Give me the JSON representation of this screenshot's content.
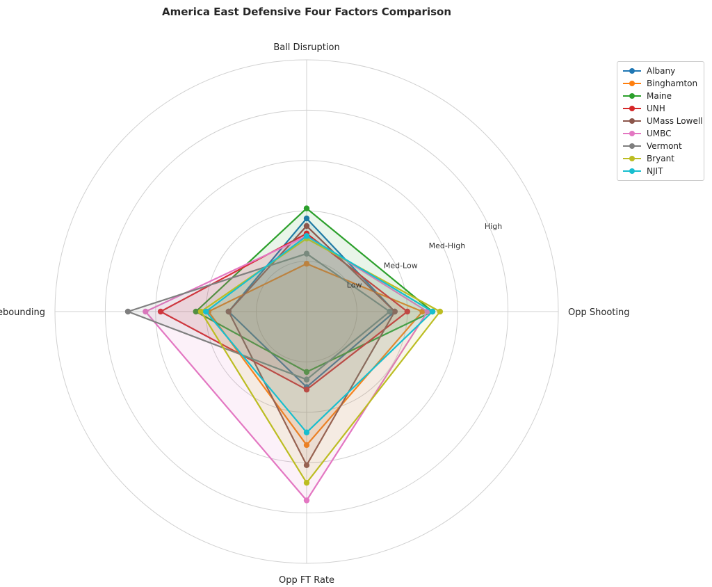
{
  "chart_data": {
    "type": "radar",
    "title": "America East Defensive Four Factors Comparison",
    "axes": [
      "Ball Disruption",
      "Opp Shooting",
      "Opp FT Rate",
      "Def Rebounding"
    ],
    "radial_ticks": [
      "Low",
      "Med-Low",
      "Med-High",
      "High"
    ],
    "radial_tick_values": [
      1,
      2,
      3,
      4
    ],
    "rlim": [
      0,
      5
    ],
    "grid": true,
    "legend_position": "top-right",
    "series": [
      {
        "name": "Albany",
        "color": "#1f77b4",
        "values": [
          1.85,
          1.75,
          1.5,
          1.55
        ]
      },
      {
        "name": "Binghamton",
        "color": "#ff7f0e",
        "values": [
          0.95,
          2.3,
          2.65,
          1.95
        ]
      },
      {
        "name": "Maine",
        "color": "#2ca02c",
        "values": [
          2.05,
          2.5,
          1.2,
          2.2
        ]
      },
      {
        "name": "UNH",
        "color": "#d62728",
        "values": [
          1.55,
          2.0,
          1.55,
          2.9
        ]
      },
      {
        "name": "UMass Lowell",
        "color": "#8c564b",
        "values": [
          1.7,
          1.75,
          3.05,
          1.55
        ]
      },
      {
        "name": "UMBC",
        "color": "#e377c2",
        "values": [
          1.5,
          2.4,
          3.75,
          3.2
        ]
      },
      {
        "name": "Vermont",
        "color": "#7f7f7f",
        "values": [
          1.15,
          1.65,
          1.35,
          3.55
        ]
      },
      {
        "name": "Bryant",
        "color": "#bcbd22",
        "values": [
          1.45,
          2.65,
          3.4,
          2.1
        ]
      },
      {
        "name": "NJIT",
        "color": "#17becf",
        "values": [
          1.5,
          2.5,
          2.4,
          2.0
        ]
      }
    ]
  }
}
